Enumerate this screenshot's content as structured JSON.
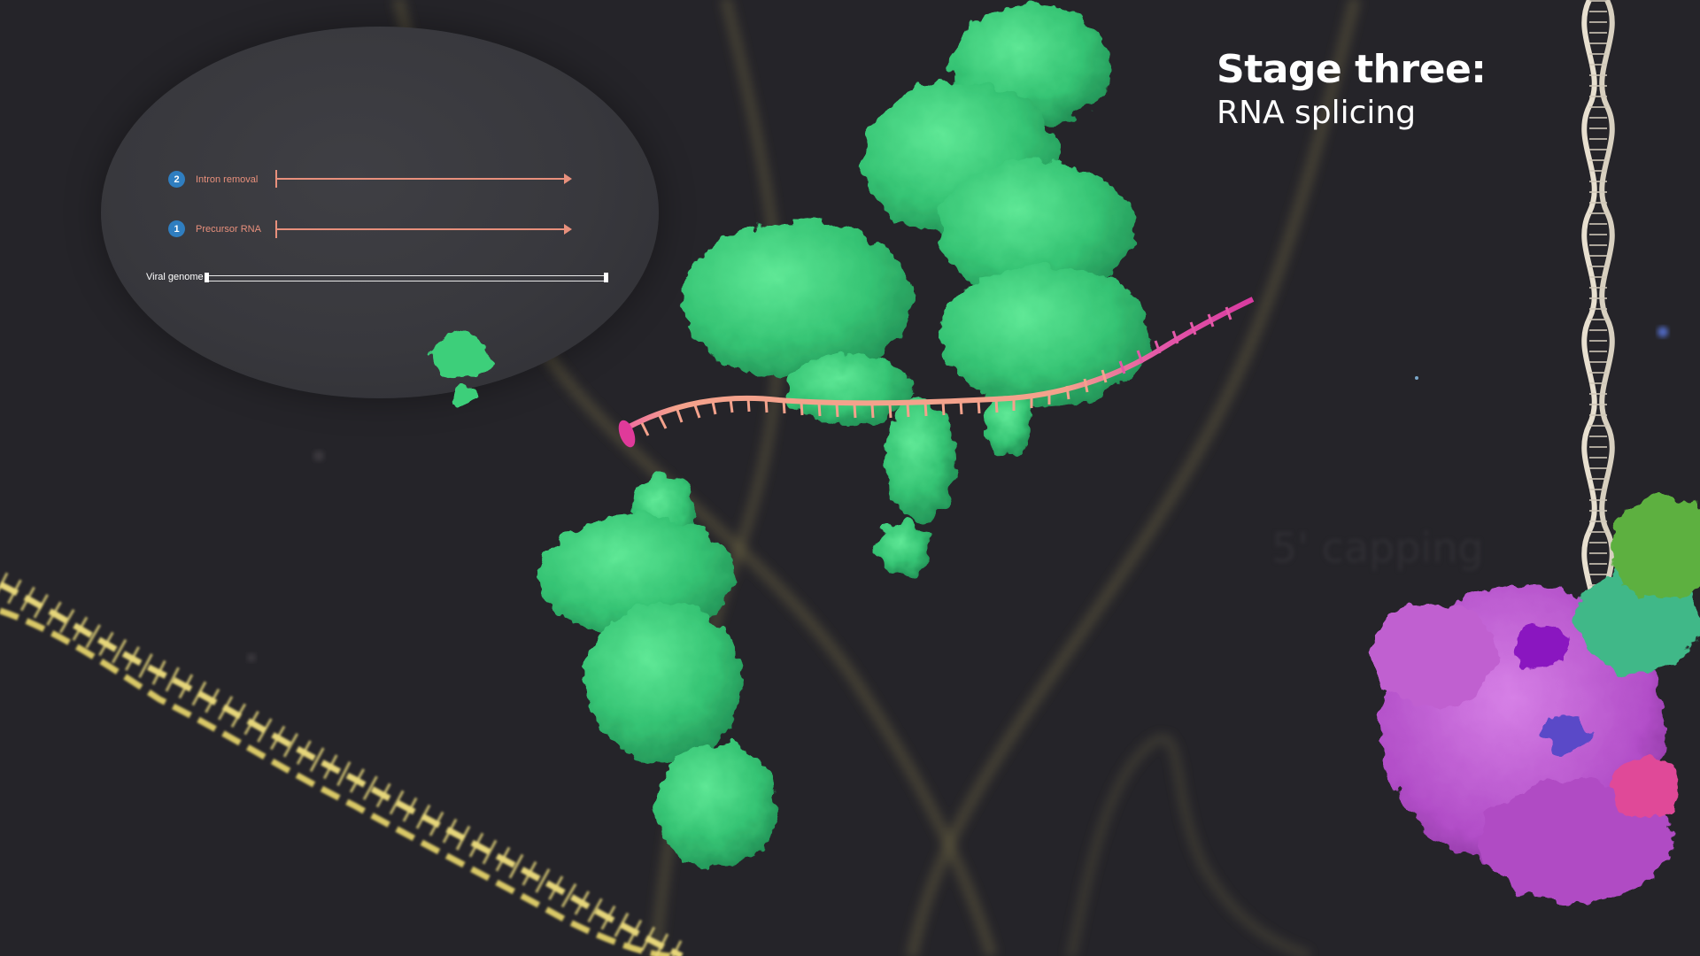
{
  "title": {
    "line1": "Stage three:",
    "line2": "RNA splicing"
  },
  "background_label": "5' capping",
  "inset": {
    "steps": [
      {
        "number": "2",
        "label": "Intron removal"
      },
      {
        "number": "1",
        "label": "Precursor RNA"
      }
    ],
    "genome_label": "Viral genome"
  },
  "colors": {
    "background": "#252429",
    "protein_green": "#3ccf7a",
    "rna_salmon": "#f0a08a",
    "rna_magenta": "#e040a0",
    "dna_yellow": "#e6d67a",
    "step_badge": "#2f7ec0",
    "complex_purple": "#b050c8"
  }
}
